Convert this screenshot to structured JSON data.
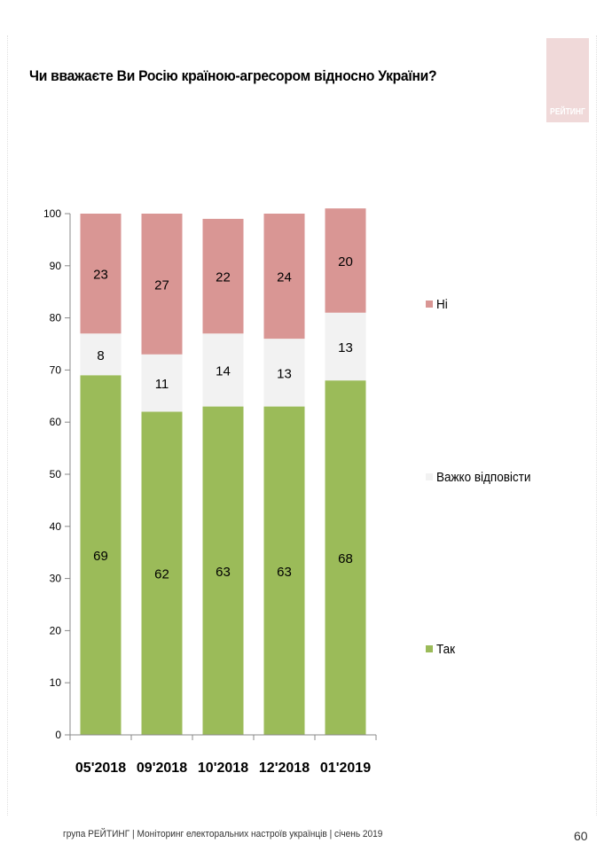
{
  "title": "Чи вважаєте Ви Росію країною-агресором відносно України?",
  "logo_text": "РЕЙТИНГ",
  "footer": {
    "text": "група РЕЙТИНГ  |  Моніторинг електоральних настроїв українців  |  січень 2019",
    "page": "60"
  },
  "chart_data": {
    "type": "bar",
    "stacked": true,
    "categories": [
      "05'2018",
      "09'2018",
      "10'2018",
      "12'2018",
      "01'2019"
    ],
    "series": [
      {
        "name": "Так",
        "values": [
          69,
          62,
          63,
          63,
          68
        ],
        "color": "#9bbb59"
      },
      {
        "name": "Важко відповісти",
        "values": [
          8,
          11,
          14,
          13,
          13
        ],
        "color": "#f2f2f2"
      },
      {
        "name": "Ні",
        "values": [
          23,
          27,
          22,
          24,
          20
        ],
        "color": "#d99694"
      }
    ],
    "ylim": [
      0,
      100
    ],
    "yticks": [
      0,
      10,
      20,
      30,
      40,
      50,
      60,
      70,
      80,
      90,
      100
    ],
    "grid": false,
    "legend": "right"
  }
}
